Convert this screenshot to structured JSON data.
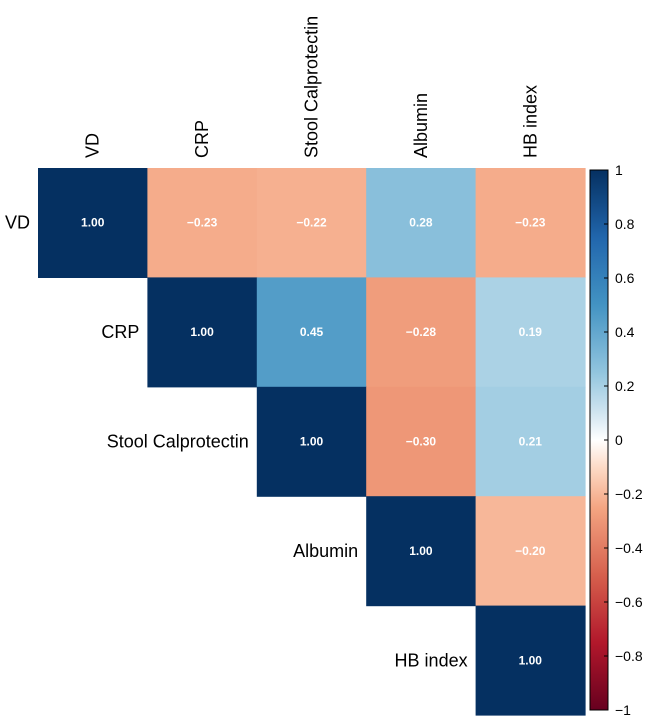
{
  "chart_data": {
    "type": "heatmap",
    "variables": [
      "VD",
      "CRP",
      "Stool Calprotectin",
      "Albumin",
      "HB index"
    ],
    "matrix": [
      [
        1.0,
        -0.23,
        -0.22,
        0.28,
        -0.23
      ],
      [
        null,
        1.0,
        0.45,
        -0.28,
        0.19
      ],
      [
        null,
        null,
        1.0,
        -0.3,
        0.21
      ],
      [
        null,
        null,
        null,
        1.0,
        -0.2
      ],
      [
        null,
        null,
        null,
        null,
        1.0
      ]
    ],
    "value_labels": [
      [
        "1.00",
        "−0.23",
        "−0.22",
        "0.28",
        "−0.23"
      ],
      [
        null,
        "1.00",
        "0.45",
        "−0.28",
        "0.19"
      ],
      [
        null,
        null,
        "1.00",
        "−0.30",
        "0.21"
      ],
      [
        null,
        null,
        null,
        "1.00",
        "−0.20"
      ],
      [
        null,
        null,
        null,
        null,
        "1.00"
      ]
    ],
    "color_scale": {
      "range": [
        -1,
        1
      ],
      "ticks": [
        1,
        0.8,
        0.6,
        0.4,
        0.2,
        0,
        -0.2,
        -0.4,
        -0.6,
        -0.8,
        -1
      ],
      "tick_labels": [
        "1",
        "0.8",
        "0.6",
        "0.4",
        "0.2",
        "0",
        "−0.2",
        "−0.4",
        "−0.6",
        "−0.8",
        "−1"
      ],
      "negative_color": "#67001f",
      "neutral_color": "#ffffff",
      "positive_color": "#053061"
    },
    "layout": "upper-triangle",
    "title": "",
    "xlabel": "",
    "ylabel": ""
  }
}
